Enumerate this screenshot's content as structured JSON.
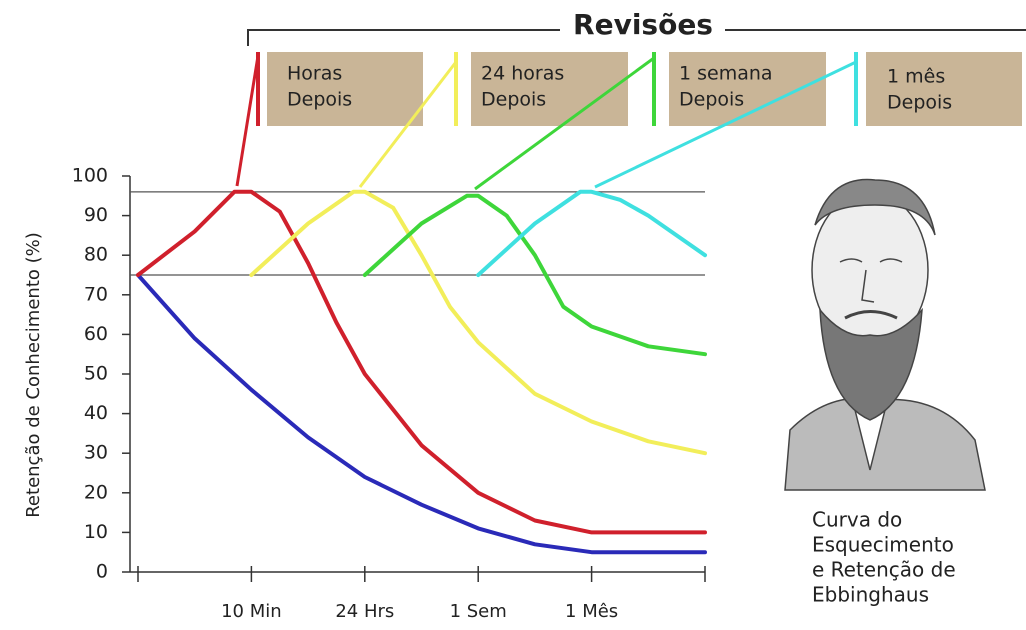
{
  "chart_data": {
    "type": "line",
    "title": "Revisões",
    "y_label": "Retenção de Conhecimento (%)",
    "categories": [
      null,
      "10 Min",
      "24 Hrs",
      "1 Sem",
      "1 Mês",
      null
    ],
    "xlim": [
      0,
      5
    ],
    "ylim": [
      0,
      100
    ],
    "yticks": [
      0,
      10,
      20,
      30,
      40,
      50,
      60,
      70,
      80,
      90,
      100
    ],
    "hlines": [
      96,
      75
    ],
    "series": [
      {
        "color": "#2a2ab8",
        "x": [
          0,
          0.5,
          1,
          1.5,
          2,
          2.5,
          3,
          3.5,
          4,
          4.5,
          5
        ],
        "values": [
          75,
          59,
          46,
          34,
          24,
          17,
          11,
          7,
          5,
          5,
          5
        ]
      },
      {
        "color": "#d0202c",
        "x": [
          0,
          0.5,
          0.85,
          1,
          1.25,
          1.5,
          1.75,
          2,
          2.5,
          3,
          3.5,
          4,
          4.5,
          5
        ],
        "values": [
          75,
          86,
          96,
          96,
          91,
          78,
          63,
          50,
          32,
          20,
          13,
          10,
          10,
          10
        ]
      },
      {
        "color": "#f2ee5a",
        "x": [
          1,
          1.5,
          1.9,
          2,
          2.25,
          2.5,
          2.75,
          3,
          3.5,
          4,
          4.5,
          5
        ],
        "values": [
          75,
          88,
          96,
          96,
          92,
          80,
          67,
          58,
          45,
          38,
          33,
          30
        ]
      },
      {
        "color": "#3ed63a",
        "x": [
          2,
          2.5,
          2.9,
          3,
          3.25,
          3.5,
          3.75,
          4,
          4.5,
          5
        ],
        "values": [
          75,
          88,
          95,
          95,
          90,
          80,
          67,
          62,
          57,
          55
        ]
      },
      {
        "color": "#3fe0e0",
        "x": [
          3,
          3.5,
          3.9,
          4,
          4.25,
          4.5,
          5
        ],
        "values": [
          75,
          88,
          96,
          96,
          94,
          90,
          80
        ]
      }
    ]
  },
  "reviews": [
    {
      "line1": "Horas",
      "line2": "Depois"
    },
    {
      "line1": "24 horas",
      "line2": "Depois"
    },
    {
      "line1": "1 semana",
      "line2": "Depois"
    },
    {
      "line1": "1 mês",
      "line2": "Depois"
    }
  ],
  "caption": [
    "Curva do",
    "Esquecimento",
    "e Retenção de",
    "Ebbinghaus"
  ]
}
